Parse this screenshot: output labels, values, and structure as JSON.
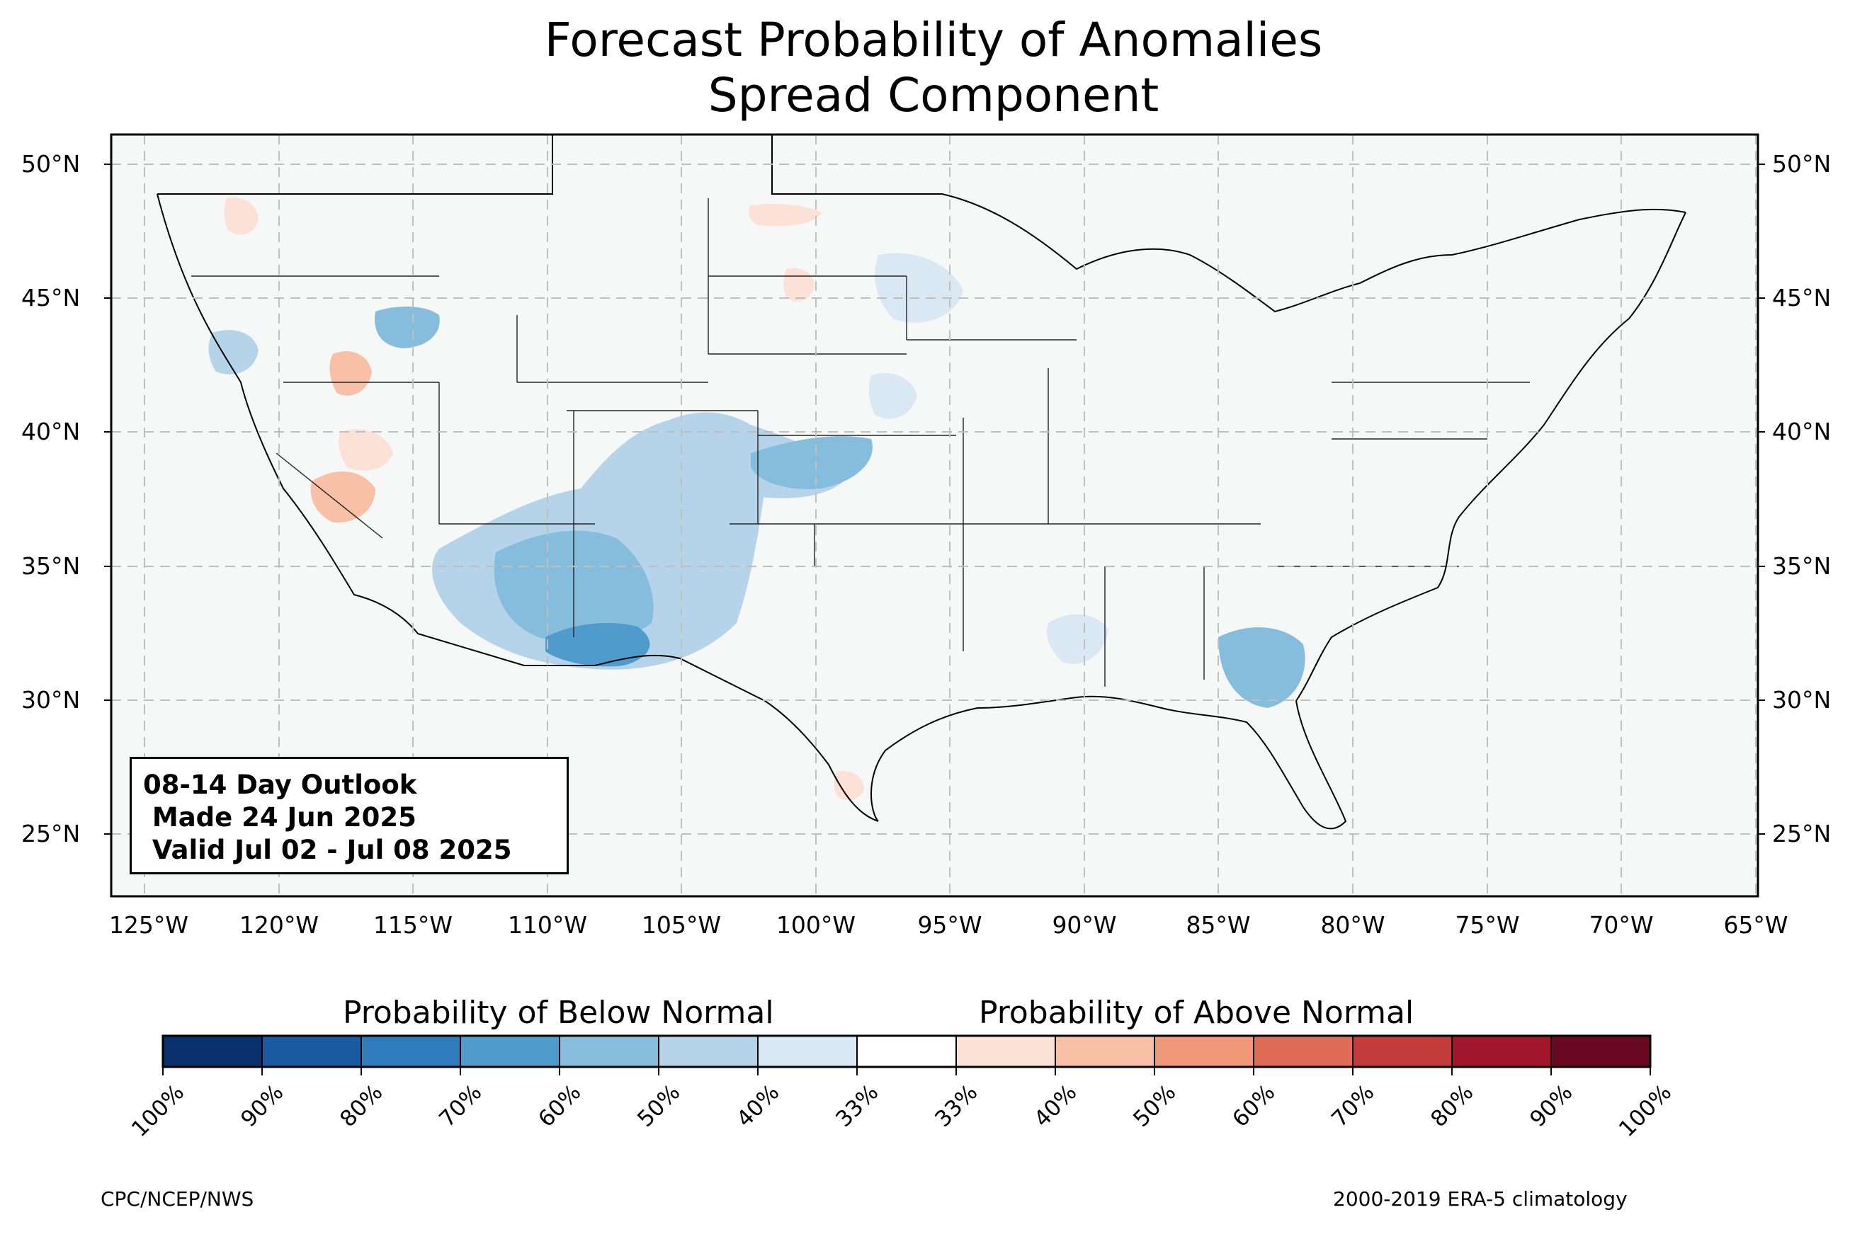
{
  "title": {
    "line1": "Forecast Probability of Anomalies",
    "line2": "Spread Component"
  },
  "map": {
    "projection": "PlateCarree",
    "lon_range": [
      -126.2,
      -64.9
    ],
    "lat_range": [
      22.8,
      51.3
    ],
    "gridlines": true,
    "latitude_labels": [
      "50°N",
      "45°N",
      "40°N",
      "35°N",
      "30°N",
      "25°N"
    ],
    "latitude_values": [
      50,
      45,
      40,
      35,
      30,
      25
    ],
    "longitude_labels": [
      "125°W",
      "120°W",
      "115°W",
      "110°W",
      "105°W",
      "100°W",
      "95°W",
      "90°W",
      "85°W",
      "80°W",
      "75°W",
      "70°W",
      "65°W"
    ],
    "longitude_values": [
      -125,
      -120,
      -115,
      -110,
      -105,
      -100,
      -95,
      -90,
      -85,
      -80,
      -75,
      -70,
      -65
    ],
    "background_color": "#f6f8f8",
    "anomaly_regions": [
      {
        "category": "below",
        "probability_bin": "40-50%",
        "approx_center_lon": -108,
        "approx_center_lat": 35,
        "approx_extent_deg": 6
      },
      {
        "category": "below",
        "probability_bin": "60-70%",
        "approx_center_lon": -108,
        "approx_center_lat": 32,
        "approx_extent_deg": 3
      },
      {
        "category": "below",
        "probability_bin": "40-50%",
        "approx_center_lon": -104,
        "approx_center_lat": 38.5,
        "approx_extent_deg": 4
      },
      {
        "category": "below",
        "probability_bin": "40-50%",
        "approx_center_lon": -115,
        "approx_center_lat": 43.5,
        "approx_extent_deg": 2
      },
      {
        "category": "below",
        "probability_bin": "40-50%",
        "approx_center_lon": -81.5,
        "approx_center_lat": 31,
        "approx_extent_deg": 2
      },
      {
        "category": "below",
        "probability_bin": "33-40%",
        "approx_center_lon": -96,
        "approx_center_lat": 45,
        "approx_extent_deg": 2
      },
      {
        "category": "above",
        "probability_bin": "40-50%",
        "approx_center_lon": -117.5,
        "approx_center_lat": 37.5,
        "approx_extent_deg": 2
      },
      {
        "category": "above",
        "probability_bin": "40-50%",
        "approx_center_lon": -116.5,
        "approx_center_lat": 41.5,
        "approx_extent_deg": 1.5
      },
      {
        "category": "above",
        "probability_bin": "33-40%",
        "approx_center_lon": -115,
        "approx_center_lat": 39.5,
        "approx_extent_deg": 1.5
      },
      {
        "category": "above",
        "probability_bin": "33-40%",
        "approx_center_lon": -101,
        "approx_center_lat": 45.5,
        "approx_extent_deg": 1
      }
    ]
  },
  "info_box": {
    "line1": "08-14 Day Outlook",
    "line2": " Made 24 Jun 2025",
    "line3": " Valid Jul 02 - Jul 08 2025"
  },
  "colorbar": {
    "below_label": "Probability of Below Normal",
    "above_label": "Probability of Above Normal",
    "colors": [
      "#08306b",
      "#1a5aa0",
      "#2f7bbc",
      "#4f9bcb",
      "#86bcdc",
      "#b6d4e9",
      "#dae8f4",
      "#ffffff",
      "#fbe1d6",
      "#f8c0a7",
      "#f1987a",
      "#de6c57",
      "#c43b3e",
      "#a3172c",
      "#6b0922"
    ],
    "tick_labels": [
      "100%",
      "90%",
      "80%",
      "70%",
      "60%",
      "50%",
      "40%",
      "33%",
      "33%",
      "40%",
      "50%",
      "60%",
      "70%",
      "80%",
      "90%",
      "100%"
    ]
  },
  "credits": {
    "left": "CPC/NCEP/NWS",
    "right": "2000-2019 ERA-5 climatology"
  }
}
